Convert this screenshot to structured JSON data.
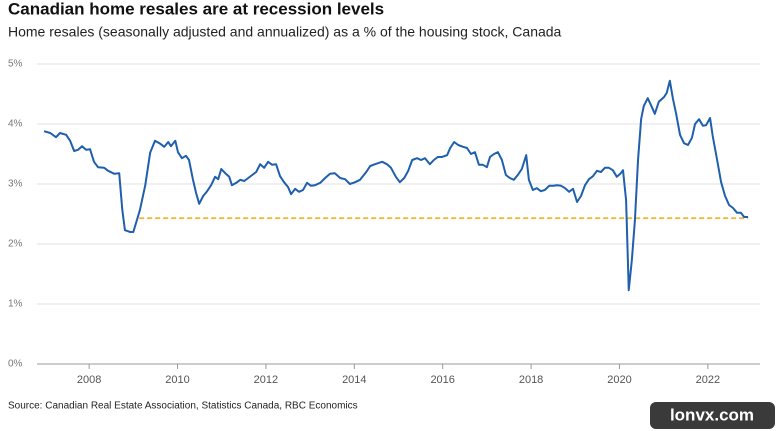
{
  "chart_data": {
    "type": "line",
    "title": "Canadian home resales are at recession levels",
    "subtitle": "Home resales (seasonally adjusted and annualized) as a % of the housing stock, Canada",
    "source": "Source: Canadian Real Estate Association, Statistics Canada, RBC Economics",
    "watermark": "lonvx.com",
    "x": [
      2006.98,
      2007.12,
      2007.25,
      2007.34,
      2007.48,
      2007.57,
      2007.66,
      2007.75,
      2007.84,
      2007.93,
      2008.02,
      2008.11,
      2008.2,
      2008.34,
      2008.43,
      2008.57,
      2008.68,
      2008.75,
      2008.81,
      2008.93,
      2009.0,
      2009.15,
      2009.27,
      2009.38,
      2009.49,
      2009.61,
      2009.7,
      2009.79,
      2009.85,
      2009.95,
      2010.01,
      2010.1,
      2010.19,
      2010.26,
      2010.35,
      2010.42,
      2010.49,
      2010.58,
      2010.67,
      2010.76,
      2010.85,
      2010.92,
      2010.99,
      2011.08,
      2011.17,
      2011.23,
      2011.33,
      2011.42,
      2011.51,
      2011.6,
      2011.69,
      2011.78,
      2011.87,
      2011.96,
      2012.05,
      2012.14,
      2012.23,
      2012.32,
      2012.41,
      2012.5,
      2012.57,
      2012.66,
      2012.75,
      2012.84,
      2012.93,
      2013.02,
      2013.11,
      2013.23,
      2013.34,
      2013.45,
      2013.56,
      2013.68,
      2013.79,
      2013.9,
      2014.02,
      2014.13,
      2014.27,
      2014.36,
      2014.47,
      2014.63,
      2014.74,
      2014.83,
      2014.94,
      2015.03,
      2015.13,
      2015.22,
      2015.31,
      2015.42,
      2015.51,
      2015.6,
      2015.71,
      2015.8,
      2015.89,
      2015.98,
      2016.1,
      2016.17,
      2016.26,
      2016.35,
      2016.46,
      2016.55,
      2016.64,
      2016.73,
      2016.82,
      2016.91,
      2017.0,
      2017.07,
      2017.16,
      2017.25,
      2017.34,
      2017.43,
      2017.52,
      2017.61,
      2017.7,
      2017.79,
      2017.89,
      2017.95,
      2018.04,
      2018.13,
      2018.22,
      2018.31,
      2018.41,
      2018.5,
      2018.59,
      2018.68,
      2018.77,
      2018.86,
      2018.95,
      2019.04,
      2019.13,
      2019.22,
      2019.31,
      2019.4,
      2019.49,
      2019.58,
      2019.67,
      2019.76,
      2019.85,
      2019.94,
      2020.03,
      2020.08,
      2020.15,
      2020.21,
      2020.28,
      2020.35,
      2020.42,
      2020.49,
      2020.55,
      2020.64,
      2020.71,
      2020.8,
      2020.89,
      2021.01,
      2021.07,
      2021.14,
      2021.21,
      2021.28,
      2021.37,
      2021.46,
      2021.55,
      2021.64,
      2021.71,
      2021.8,
      2021.89,
      2021.96,
      2022.05,
      2022.11,
      2022.21,
      2022.3,
      2022.39,
      2022.48,
      2022.57,
      2022.66,
      2022.75,
      2022.82,
      2022.91
    ],
    "series": [
      {
        "name": "Home resales",
        "color": "#1f5fad",
        "values": [
          3.88,
          3.85,
          3.78,
          3.85,
          3.82,
          3.72,
          3.55,
          3.57,
          3.63,
          3.57,
          3.58,
          3.37,
          3.28,
          3.27,
          3.22,
          3.17,
          3.18,
          2.57,
          2.23,
          2.2,
          2.2,
          2.57,
          2.98,
          3.52,
          3.72,
          3.67,
          3.62,
          3.7,
          3.63,
          3.72,
          3.53,
          3.43,
          3.47,
          3.4,
          3.07,
          2.85,
          2.67,
          2.8,
          2.88,
          2.98,
          3.12,
          3.08,
          3.25,
          3.18,
          3.12,
          2.98,
          3.02,
          3.07,
          3.05,
          3.1,
          3.15,
          3.2,
          3.33,
          3.27,
          3.37,
          3.32,
          3.33,
          3.13,
          3.03,
          2.95,
          2.83,
          2.92,
          2.87,
          2.9,
          3.02,
          2.97,
          2.98,
          3.02,
          3.1,
          3.17,
          3.18,
          3.1,
          3.08,
          3.0,
          3.03,
          3.07,
          3.2,
          3.3,
          3.33,
          3.37,
          3.33,
          3.27,
          3.12,
          3.03,
          3.1,
          3.22,
          3.4,
          3.43,
          3.4,
          3.43,
          3.33,
          3.4,
          3.45,
          3.45,
          3.48,
          3.6,
          3.7,
          3.65,
          3.62,
          3.6,
          3.5,
          3.53,
          3.32,
          3.32,
          3.28,
          3.45,
          3.5,
          3.53,
          3.4,
          3.15,
          3.1,
          3.07,
          3.15,
          3.25,
          3.48,
          3.07,
          2.9,
          2.93,
          2.88,
          2.9,
          2.97,
          2.97,
          2.98,
          2.97,
          2.93,
          2.87,
          2.92,
          2.7,
          2.8,
          2.98,
          3.08,
          3.13,
          3.22,
          3.2,
          3.27,
          3.27,
          3.23,
          3.12,
          3.18,
          3.23,
          2.73,
          1.23,
          1.73,
          2.4,
          3.4,
          4.08,
          4.3,
          4.43,
          4.32,
          4.17,
          4.37,
          4.45,
          4.52,
          4.72,
          4.42,
          4.18,
          3.82,
          3.68,
          3.65,
          3.77,
          4.0,
          4.08,
          3.97,
          3.98,
          4.1,
          3.8,
          3.4,
          3.03,
          2.8,
          2.65,
          2.6,
          2.52,
          2.52,
          2.45,
          2.45
        ]
      }
    ],
    "reference_line": {
      "value": 2.43,
      "x": [
        2009.13,
        2022.91
      ],
      "color": "#f0b93a"
    },
    "xlim": [
      2006.82,
      2023.18
    ],
    "xticks": [
      2008,
      2010,
      2012,
      2014,
      2016,
      2018,
      2020,
      2022
    ],
    "ylim": [
      0,
      5
    ],
    "yticks": [
      {
        "value": 0,
        "label": "0%"
      },
      {
        "value": 1,
        "label": "1%"
      },
      {
        "value": 2,
        "label": "2%"
      },
      {
        "value": 3,
        "label": "3%"
      },
      {
        "value": 4,
        "label": "4%"
      },
      {
        "value": 5,
        "label": "5%"
      }
    ],
    "grid": true
  }
}
